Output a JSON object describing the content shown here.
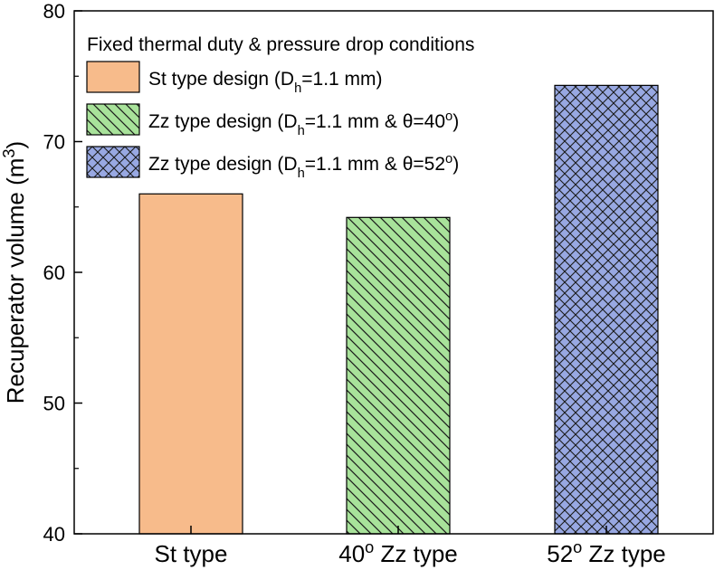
{
  "chart_data": {
    "type": "bar",
    "categories": [
      {
        "pre": "",
        "sup": "",
        "post": "St type"
      },
      {
        "pre": "40",
        "sup": "o",
        "post": " Zz type"
      },
      {
        "pre": "52",
        "sup": "o",
        "post": " Zz type"
      }
    ],
    "values": [
      66.0,
      64.2,
      74.3
    ],
    "ylabel": {
      "text": "Recuperator volume (m",
      "sup": "3",
      "close": ")"
    },
    "ylim": [
      40,
      80
    ],
    "yticks": [
      40,
      50,
      60,
      70,
      80
    ],
    "grid": false,
    "legend": {
      "placement": "top-left",
      "title": "Fixed thermal duty & pressure drop conditions",
      "entries": [
        {
          "parts": [
            {
              "t": "St type design (D"
            },
            {
              "t": "h",
              "sub": true
            },
            {
              "t": "=1.1 mm)"
            }
          ]
        },
        {
          "parts": [
            {
              "t": "Zz type design (D"
            },
            {
              "t": "h",
              "sub": true
            },
            {
              "t": "=1.1 mm & θ=40"
            },
            {
              "t": "o",
              "sup": true
            },
            {
              "t": ")"
            }
          ]
        },
        {
          "parts": [
            {
              "t": "Zz type design (D"
            },
            {
              "t": "h",
              "sub": true
            },
            {
              "t": "=1.1 mm & θ=52"
            },
            {
              "t": "o",
              "sup": true
            },
            {
              "t": ")"
            }
          ]
        }
      ]
    },
    "bar_styles": [
      {
        "fill": "#f7bb8b",
        "pattern": "none"
      },
      {
        "fill": "#a8e29a",
        "pattern": "diagonal"
      },
      {
        "fill": "#98a8e2",
        "pattern": "crosshatch"
      }
    ]
  }
}
